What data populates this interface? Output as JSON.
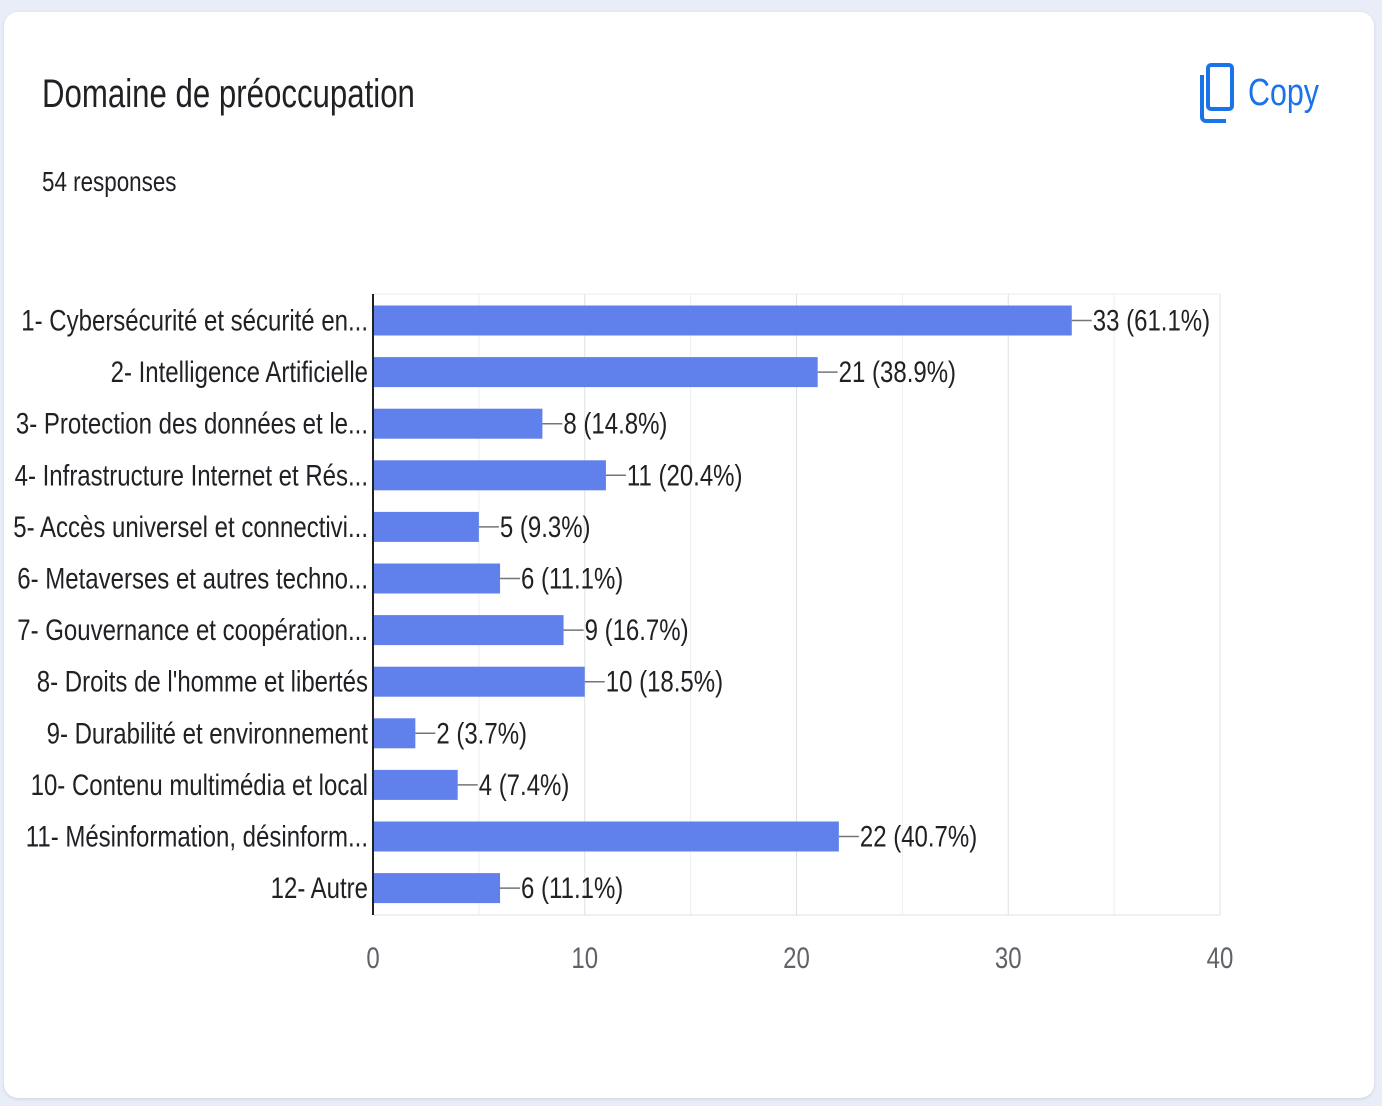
{
  "header": {
    "title": "Domaine de préoccupation",
    "responses": "54 responses",
    "copy_label": "Copy"
  },
  "colors": {
    "bar": "#6080ec",
    "accent": "#1a73e8"
  },
  "icons": {
    "copy": "copy-icon"
  },
  "chart_data": {
    "type": "bar",
    "orientation": "horizontal",
    "categories": [
      "1- Cybersécurité et sécurité en...",
      "2- Intelligence Artificielle",
      "3- Protection des données et le...",
      "4- Infrastructure Internet et Rés...",
      "5- Accès universel et connectivi...",
      "6- Metaverses et autres techno...",
      "7- Gouvernance et coopération...",
      "8- Droits de l'homme et libertés",
      "9- Durabilité et environnement",
      "10- Contenu multimédia et local",
      "11- Mésinformation, désinform...",
      "12- Autre"
    ],
    "values": [
      33,
      21,
      8,
      11,
      5,
      6,
      9,
      10,
      2,
      4,
      22,
      6
    ],
    "value_labels": [
      "33 (61.1%)",
      "21 (38.9%)",
      "8 (14.8%)",
      "11 (20.4%)",
      "5 (9.3%)",
      "6 (11.1%)",
      "9 (16.7%)",
      "10 (18.5%)",
      "2 (3.7%)",
      "4 (7.4%)",
      "22 (40.7%)",
      "6 (11.1%)"
    ],
    "xlim": [
      0,
      40
    ],
    "xticks": [
      0,
      10,
      20,
      30,
      40
    ],
    "grid": true
  }
}
